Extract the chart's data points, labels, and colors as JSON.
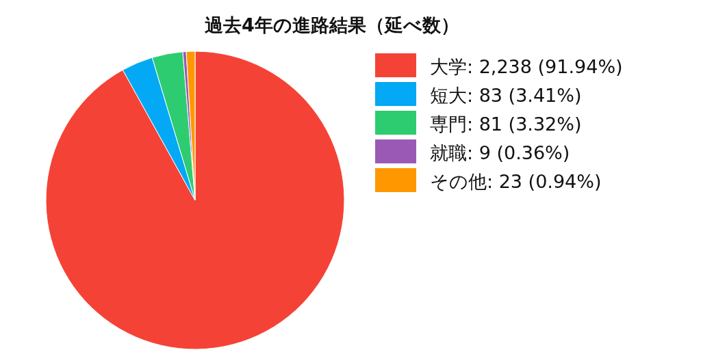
{
  "chart_data": {
    "type": "pie",
    "title": "過去4年の進路結果（延べ数）",
    "categories": [
      "大学",
      "短大",
      "専門",
      "就職",
      "その他"
    ],
    "values": [
      2238,
      83,
      81,
      9,
      23
    ],
    "value_labels": [
      "2,238 (91.94%)",
      "83 (3.41%)",
      "81 (3.32%)",
      "9 (0.36%)",
      "23 (0.94%)"
    ],
    "colors": [
      "#f44336",
      "#03a9f4",
      "#2ecc71",
      "#9b59b6",
      "#ff9800"
    ],
    "legend": "right"
  }
}
